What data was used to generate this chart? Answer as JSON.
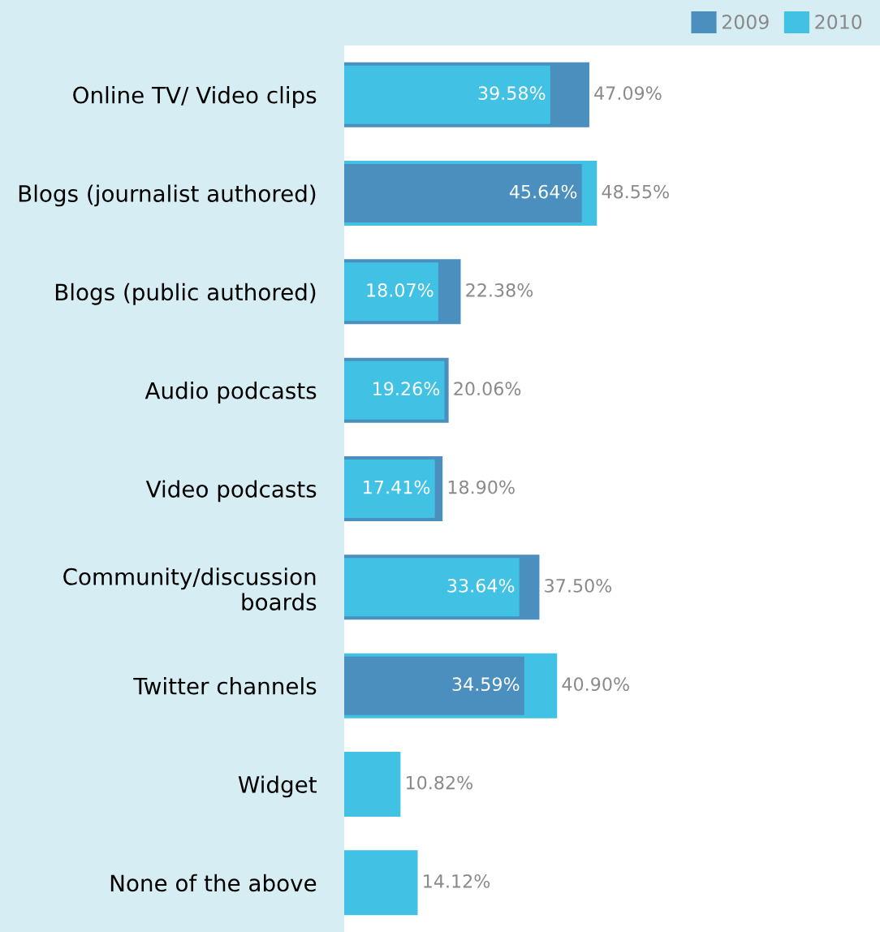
{
  "chart_data": {
    "type": "bar",
    "orientation": "horizontal",
    "categories": [
      "Online TV/ Video clips",
      "Blogs (journalist authored)",
      "Blogs (public authored)",
      "Audio podcasts",
      "Video podcasts",
      "Community/discussion boards",
      "Twitter channels",
      "Widget",
      "None of the above"
    ],
    "series": [
      {
        "name": "2009",
        "color": "#4a8fbd",
        "values": [
          47.09,
          45.64,
          22.38,
          20.06,
          18.9,
          37.5,
          34.59,
          null,
          null
        ],
        "value_labels": [
          "47.09%",
          "45.64%",
          "22.38%",
          "20.06%",
          "18.90%",
          "37.50%",
          "34.59%",
          null,
          null
        ]
      },
      {
        "name": "2010",
        "color": "#41c1e3",
        "values": [
          39.58,
          48.55,
          18.07,
          19.26,
          17.41,
          33.64,
          40.9,
          10.82,
          14.12
        ],
        "value_labels": [
          "39.58%",
          "48.55%",
          "18.07%",
          "19.26%",
          "17.41%",
          "33.64%",
          "40.90%",
          "10.82%",
          "14.12%"
        ]
      }
    ],
    "tick_labels": "y",
    "legend": "top right",
    "grid": false
  }
}
